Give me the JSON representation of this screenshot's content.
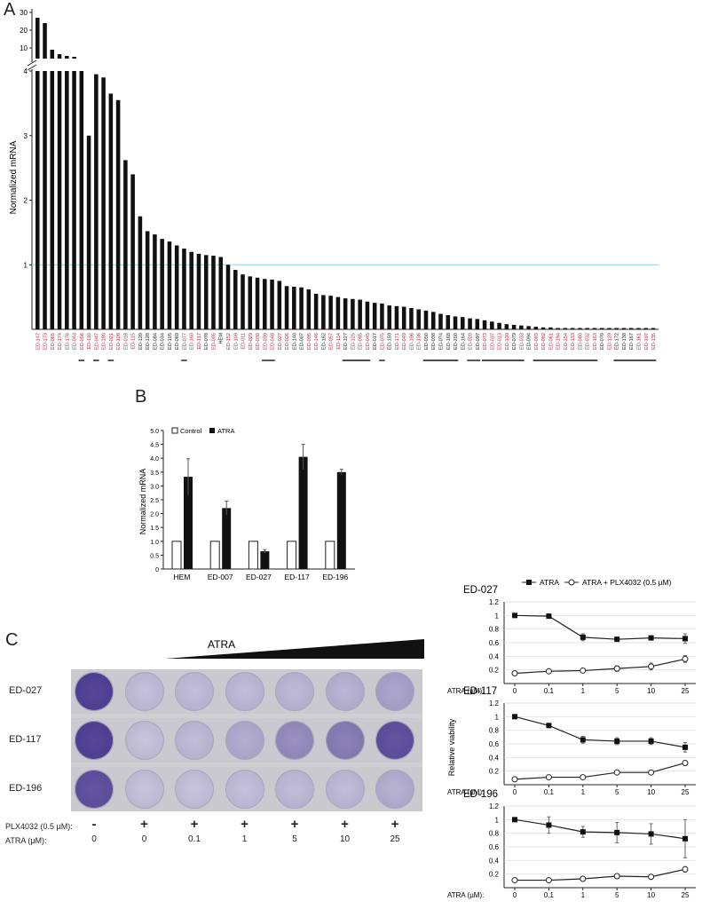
{
  "panels": {
    "a": "A",
    "b": "B",
    "c": "C"
  },
  "colors": {
    "bar": "#111111",
    "red_label": "#c0213a",
    "black_label": "#222222",
    "ref_line": "#8fd3dd",
    "stain": "#5b4b9c"
  },
  "chart_data": [
    {
      "id": "panel-a",
      "type": "bar",
      "ylabel": "Normalized mRNA",
      "yticks_lower": [
        "1",
        "2",
        "3",
        "4"
      ],
      "yticks_upper": [
        "10",
        "20",
        "30"
      ],
      "axis_break": true,
      "reference_line": 1,
      "categories": [
        "ED-147",
        "ED-173",
        "ED-065",
        "ED-174",
        "ED-176",
        "ED-043",
        "ED-056",
        "ED-110",
        "ED-047",
        "ED-180",
        "ED-021",
        "ED-108",
        "ED-018",
        "ED-115",
        "ED-120",
        "ED-128",
        "ED-084",
        "ED-034",
        "ED-105",
        "ED-069",
        "ED-077",
        "ED-160",
        "ED-117",
        "ED-078",
        "ED-005",
        "HEM",
        "ED-152",
        "ED-109",
        "ED-011",
        "ED-029",
        "ED-030",
        "ED-039",
        "ED-048",
        "ED-027",
        "ED-026",
        "ED-140",
        "ED-007",
        "ED-095",
        "ED-146",
        "ED-162",
        "ED-057",
        "ED-114",
        "ED-127",
        "ED-125",
        "ED-085",
        "ED-045",
        "ED-017",
        "ED-075",
        "ED-159",
        "ED-171",
        "ED-049",
        "ED-196",
        "ED-136",
        "ED-050",
        "ED-038",
        "ED-074",
        "ED-168",
        "ED-200",
        "ED-164",
        "ED-020",
        "ED-097",
        "ED-073",
        "ED-037",
        "ED-013",
        "ED-199",
        "ED-079",
        "ED-033",
        "ED-094",
        "ED-083",
        "ED-082",
        "ED-061",
        "ED-194",
        "ED-154",
        "ED-133",
        "ED-080",
        "ED-032",
        "ED-153",
        "ED-070",
        "ED-129",
        "ED-172",
        "ED-138",
        "ED-167",
        "ED-161",
        "ED-107",
        "ED-135"
      ],
      "label_colors": [
        "red",
        "red",
        "red",
        "red",
        "red",
        "red",
        "red",
        "red",
        "red",
        "red",
        "red",
        "red",
        "red",
        "red",
        "black",
        "black",
        "black",
        "black",
        "black",
        "black",
        "red",
        "red",
        "red",
        "black",
        "red",
        "black",
        "red",
        "red",
        "red",
        "red",
        "red",
        "red",
        "red",
        "red",
        "red",
        "black",
        "black",
        "red",
        "red",
        "black",
        "red",
        "red",
        "black",
        "red",
        "red",
        "red",
        "black",
        "red",
        "black",
        "red",
        "red",
        "red",
        "red",
        "black",
        "black",
        "black",
        "black",
        "black",
        "black",
        "red",
        "black",
        "red",
        "red",
        "red",
        "red",
        "black",
        "red",
        "black",
        "red",
        "red",
        "red",
        "red",
        "red",
        "red",
        "red",
        "red",
        "red",
        "black",
        "red",
        "black",
        "black",
        "black",
        "red",
        "red",
        "red"
      ],
      "values": [
        27,
        24,
        9,
        6.5,
        5.5,
        5,
        4,
        3,
        3.95,
        3.9,
        3.65,
        3.55,
        2.62,
        2.4,
        1.75,
        1.52,
        1.47,
        1.4,
        1.36,
        1.3,
        1.25,
        1.2,
        1.17,
        1.15,
        1.14,
        1.12,
        1.0,
        0.92,
        0.85,
        0.82,
        0.8,
        0.78,
        0.77,
        0.75,
        0.67,
        0.66,
        0.65,
        0.62,
        0.55,
        0.53,
        0.52,
        0.5,
        0.48,
        0.47,
        0.46,
        0.43,
        0.41,
        0.4,
        0.37,
        0.36,
        0.35,
        0.33,
        0.31,
        0.29,
        0.27,
        0.24,
        0.22,
        0.2,
        0.19,
        0.17,
        0.16,
        0.14,
        0.12,
        0.1,
        0.08,
        0.07,
        0.06,
        0.05,
        0.04,
        0.03,
        0.03,
        0.02,
        0.02,
        0.02,
        0.02,
        0.02,
        0.02,
        0.02,
        0.02,
        0.02,
        0.02,
        0.02,
        0.02,
        0.02,
        0.02
      ],
      "underline_groups": [
        [
          6,
          6
        ],
        [
          8,
          8
        ],
        [
          10,
          10
        ],
        [
          20,
          20
        ],
        [
          31,
          32
        ],
        [
          42,
          45
        ],
        [
          47,
          47
        ],
        [
          53,
          57
        ],
        [
          59,
          60
        ],
        [
          61,
          66
        ],
        [
          68,
          76
        ],
        [
          79,
          84
        ]
      ]
    },
    {
      "id": "panel-b",
      "type": "bar",
      "ylabel": "Normalized mRNA",
      "ylim": [
        0,
        5
      ],
      "yticks": [
        "0",
        "0.5",
        "1.0",
        "1.5",
        "2.0",
        "2.5",
        "3.0",
        "3.5",
        "4.0",
        "4.5",
        "5.0"
      ],
      "legend": [
        "Control",
        "ATRA"
      ],
      "categories": [
        "HEM",
        "ED-007",
        "ED-027",
        "ED-117",
        "ED-196"
      ],
      "series": [
        {
          "name": "Control",
          "values": [
            1,
            1,
            1,
            1,
            1
          ],
          "errors": [
            0,
            0,
            0,
            0,
            0
          ]
        },
        {
          "name": "ATRA",
          "values": [
            3.33,
            2.2,
            0.64,
            4.05,
            3.5
          ],
          "errors": [
            0.65,
            0.25,
            0.06,
            0.45,
            0.1
          ]
        }
      ]
    },
    {
      "id": "panel-c-lines",
      "type": "line",
      "legend": [
        "ATRA",
        "ATRA + PLX4032 (0.5 µM)"
      ],
      "ylabel": "Relative viability",
      "xlabel": "ATRA (µM):",
      "x_ticks": [
        "0",
        "0.1",
        "1",
        "5",
        "10",
        "25"
      ],
      "yticks": [
        "0.2",
        "0.4",
        "0.6",
        "0.8",
        "1",
        "1.2"
      ],
      "ylim": [
        0,
        1.2
      ],
      "plots": [
        {
          "title": "ED-027",
          "series": [
            {
              "name": "ATRA",
              "values": [
                1.0,
                0.99,
                0.68,
                0.65,
                0.67,
                0.66
              ],
              "errors": [
                0.02,
                0.03,
                0.05,
                0.03,
                0.03,
                0.07
              ]
            },
            {
              "name": "ATRA + PLX4032 (0.5 µM)",
              "values": [
                0.15,
                0.18,
                0.19,
                0.22,
                0.25,
                0.36
              ],
              "errors": [
                0.01,
                0.01,
                0.02,
                0.04,
                0.05,
                0.05
              ]
            }
          ]
        },
        {
          "title": "ED-117",
          "series": [
            {
              "name": "ATRA",
              "values": [
                1.0,
                0.87,
                0.66,
                0.64,
                0.64,
                0.55
              ],
              "errors": [
                0.02,
                0.03,
                0.05,
                0.05,
                0.05,
                0.07
              ]
            },
            {
              "name": "ATRA + PLX4032 (0.5 µM)",
              "values": [
                0.08,
                0.11,
                0.11,
                0.18,
                0.18,
                0.32
              ],
              "errors": [
                0.01,
                0.01,
                0.01,
                0.01,
                0.01,
                0.03
              ]
            }
          ]
        },
        {
          "title": "ED-196",
          "series": [
            {
              "name": "ATRA",
              "values": [
                1.0,
                0.92,
                0.82,
                0.81,
                0.79,
                0.72
              ],
              "errors": [
                0.02,
                0.12,
                0.08,
                0.15,
                0.15,
                0.28
              ]
            },
            {
              "name": "ATRA + PLX4032 (0.5 µM)",
              "values": [
                0.11,
                0.11,
                0.13,
                0.17,
                0.16,
                0.27
              ],
              "errors": [
                0.01,
                0.01,
                0.01,
                0.01,
                0.01,
                0.04
              ]
            }
          ]
        }
      ]
    }
  ],
  "plate": {
    "atra_label": "ATRA",
    "rows": [
      "ED-027",
      "ED-117",
      "ED-196"
    ],
    "well_stain_intensity": [
      [
        0.95,
        0.12,
        0.14,
        0.15,
        0.17,
        0.2,
        0.3
      ],
      [
        0.95,
        0.1,
        0.15,
        0.25,
        0.45,
        0.55,
        0.85
      ],
      [
        0.85,
        0.1,
        0.1,
        0.12,
        0.15,
        0.15,
        0.22
      ]
    ],
    "condition_rows": [
      {
        "label": "PLX4032 (0.5 µM):",
        "values": [
          "-",
          "+",
          "+",
          "+",
          "+",
          "+",
          "+"
        ]
      },
      {
        "label": "ATRA (µM):",
        "values": [
          "0",
          "0",
          "0.1",
          "1",
          "5",
          "10",
          "25"
        ]
      }
    ]
  }
}
